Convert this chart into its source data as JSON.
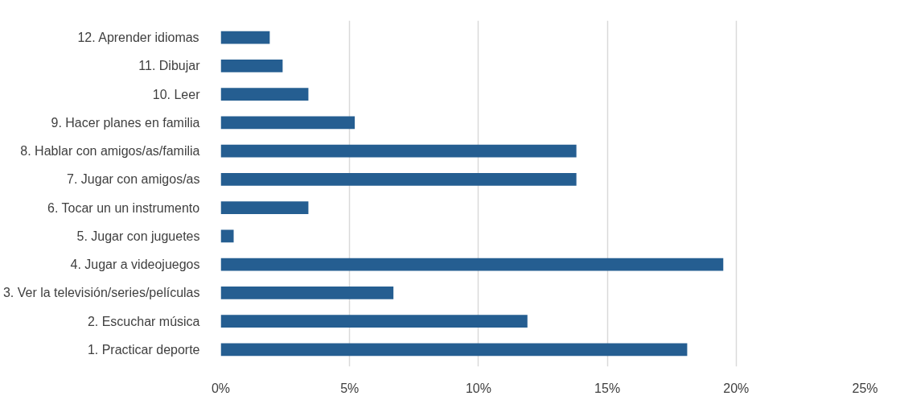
{
  "chart_data": {
    "type": "bar",
    "orientation": "horizontal",
    "categories": [
      "12. Aprender idiomas",
      "11. Dibujar",
      "10. Leer",
      "9. Hacer planes en familia",
      "8. Hablar con amigos/as/familia",
      "7. Jugar con amigos/as",
      "6. Tocar un un instrumento",
      "5. Jugar con juguetes",
      "4. Jugar a videojuegos",
      "3. Ver la televisión/series/películas",
      "2. Escuchar música",
      "1. Practicar deporte"
    ],
    "values": [
      1.9,
      2.4,
      3.4,
      5.2,
      13.8,
      13.8,
      3.4,
      0.5,
      19.5,
      6.7,
      11.9,
      18.1
    ],
    "color": "#255e91",
    "xlim": [
      0,
      25
    ],
    "xticks": [
      {
        "value": 0,
        "label": "0%"
      },
      {
        "value": 5,
        "label": "5%"
      },
      {
        "value": 10,
        "label": "10%"
      },
      {
        "value": 15,
        "label": "15%"
      },
      {
        "value": 20,
        "label": "20%"
      },
      {
        "value": 25,
        "label": "25%"
      }
    ],
    "grid": "x"
  }
}
